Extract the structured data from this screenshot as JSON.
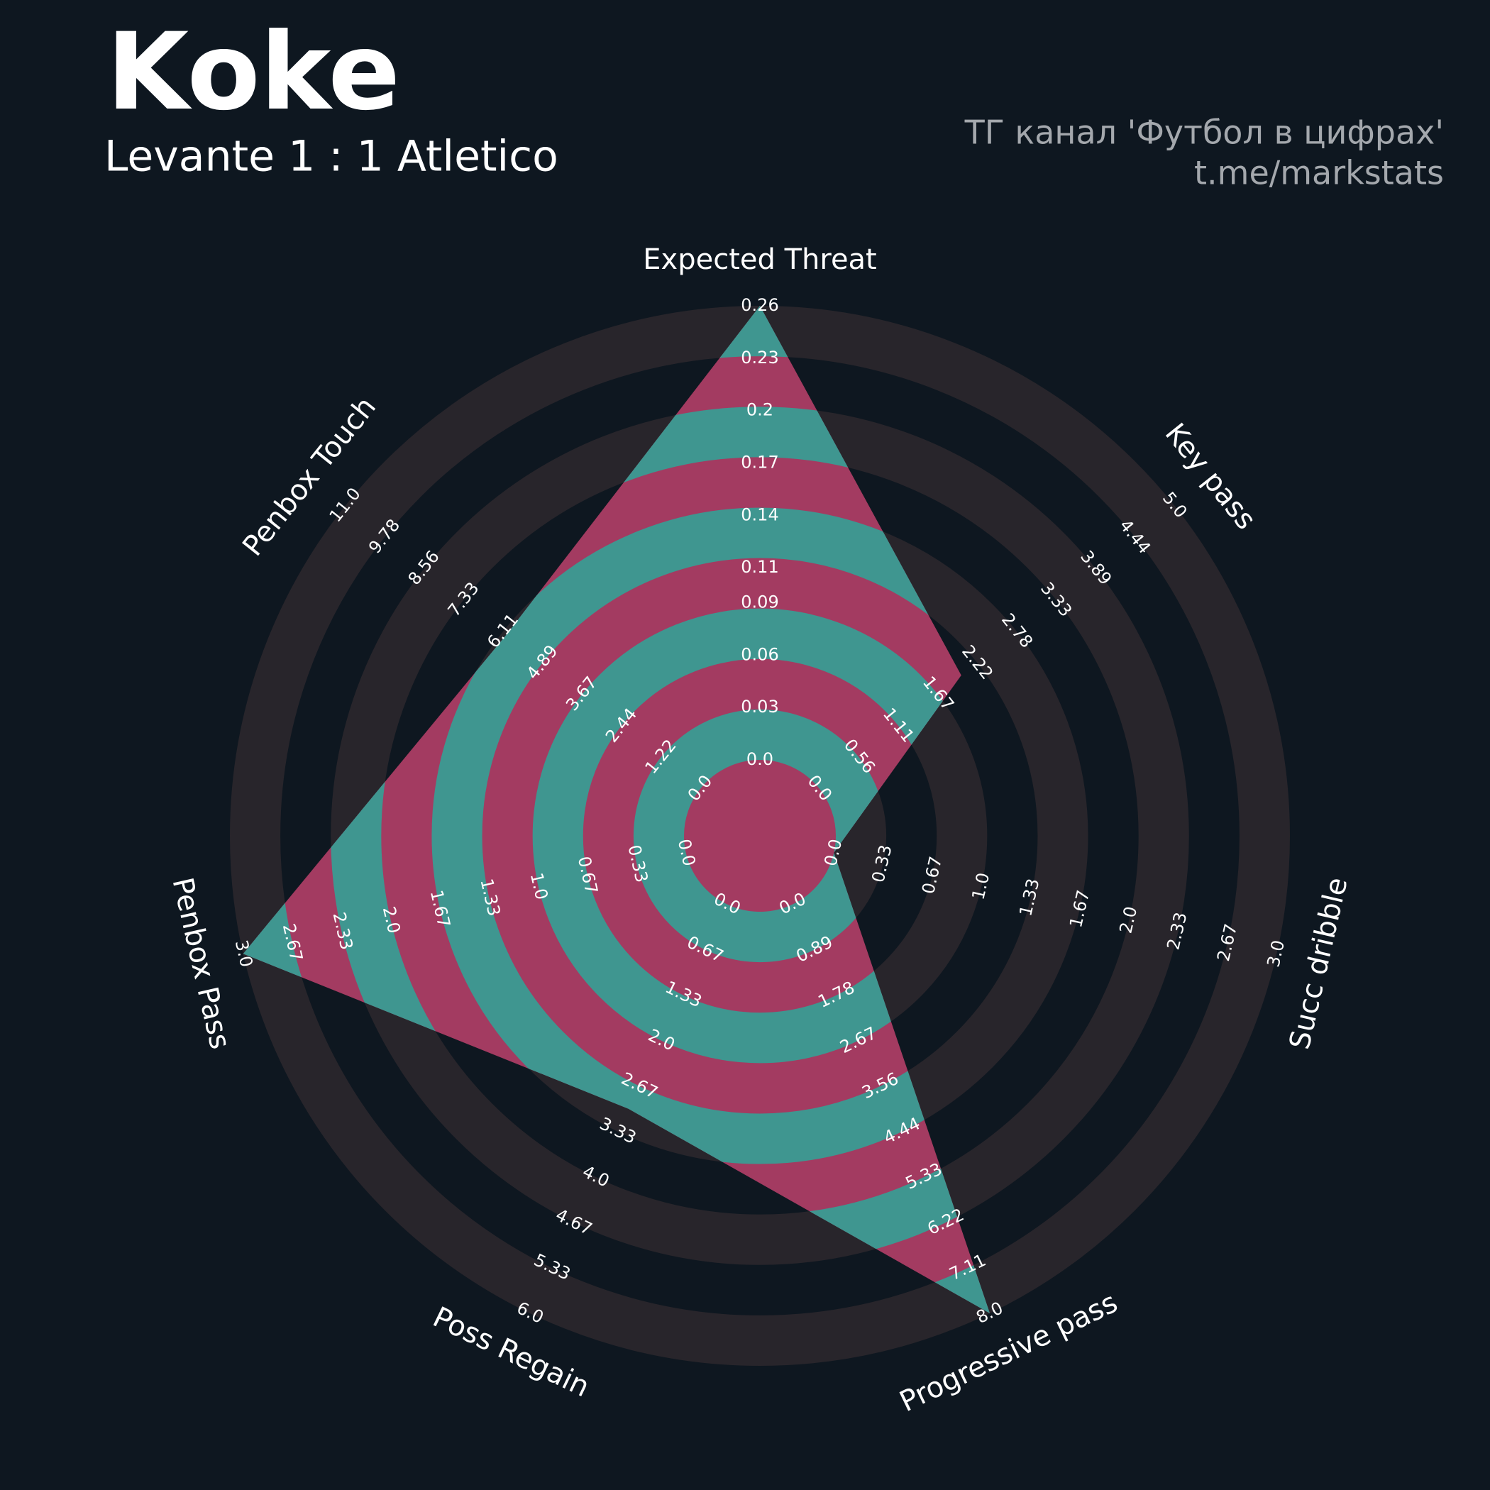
{
  "chart_data": {
    "type": "radar",
    "title": "Koke",
    "subtitle": "Levante 1 : 1 Atletico",
    "annotations": [
      "ТГ канал 'Футбол в цифрах'",
      "t.me/markstats"
    ],
    "categories": [
      "Expected Threat",
      "Key pass",
      "Succ dribble",
      "Progressive pass",
      "Poss Regain",
      "Penbox Pass",
      "Penbox Touch"
    ],
    "values": [
      0.26,
      2,
      0,
      8,
      3,
      3,
      6
    ],
    "ranges": [
      [
        0,
        0.26
      ],
      [
        0,
        5
      ],
      [
        0,
        3
      ],
      [
        0,
        8
      ],
      [
        0,
        6
      ],
      [
        0,
        3
      ],
      [
        0,
        11
      ]
    ],
    "ticks": [
      [
        {
          "value": 0,
          "label": "0.0"
        },
        0.03,
        0.06,
        0.09,
        0.11,
        0.14,
        0.17,
        0.2,
        0.23,
        0.26
      ],
      [
        {
          "value": 0,
          "label": "0.0"
        },
        0.56,
        1.11,
        1.67,
        2.22,
        2.78,
        3.33,
        3.89,
        4.44,
        {
          "value": 5,
          "label": "5.0"
        }
      ],
      [
        {
          "value": 0,
          "label": "0.0"
        },
        0.33,
        0.67,
        {
          "value": 1,
          "label": "1.0"
        },
        1.33,
        1.67,
        {
          "value": 2,
          "label": "2.0"
        },
        2.33,
        2.67,
        {
          "value": 3,
          "label": "3.0"
        }
      ],
      [
        {
          "value": 0,
          "label": "0.0"
        },
        0.89,
        1.78,
        2.67,
        3.56,
        4.44,
        5.33,
        6.22,
        7.11,
        {
          "value": 8,
          "label": "8.0"
        }
      ],
      [
        {
          "value": 0,
          "label": "0.0"
        },
        0.67,
        1.33,
        {
          "value": 2,
          "label": "2.0"
        },
        2.67,
        3.33,
        {
          "value": 4,
          "label": "4.0"
        },
        4.67,
        5.33,
        {
          "value": 6,
          "label": "6.0"
        }
      ],
      [
        {
          "value": 0,
          "label": "0.0"
        },
        0.33,
        0.67,
        {
          "value": 1,
          "label": "1.0"
        },
        1.33,
        1.67,
        {
          "value": 2,
          "label": "2.0"
        },
        2.33,
        2.67,
        {
          "value": 3,
          "label": "3.0"
        }
      ],
      [
        {
          "value": 0,
          "label": "0.0"
        },
        1.22,
        2.44,
        3.67,
        4.89,
        6.11,
        7.33,
        8.56,
        9.78,
        {
          "value": 11,
          "label": "11.0"
        }
      ]
    ],
    "colors": {
      "background": "#0e1720",
      "rings": "#28252b",
      "fill": "#a33b61",
      "fill_alt": "#3f9690"
    }
  }
}
